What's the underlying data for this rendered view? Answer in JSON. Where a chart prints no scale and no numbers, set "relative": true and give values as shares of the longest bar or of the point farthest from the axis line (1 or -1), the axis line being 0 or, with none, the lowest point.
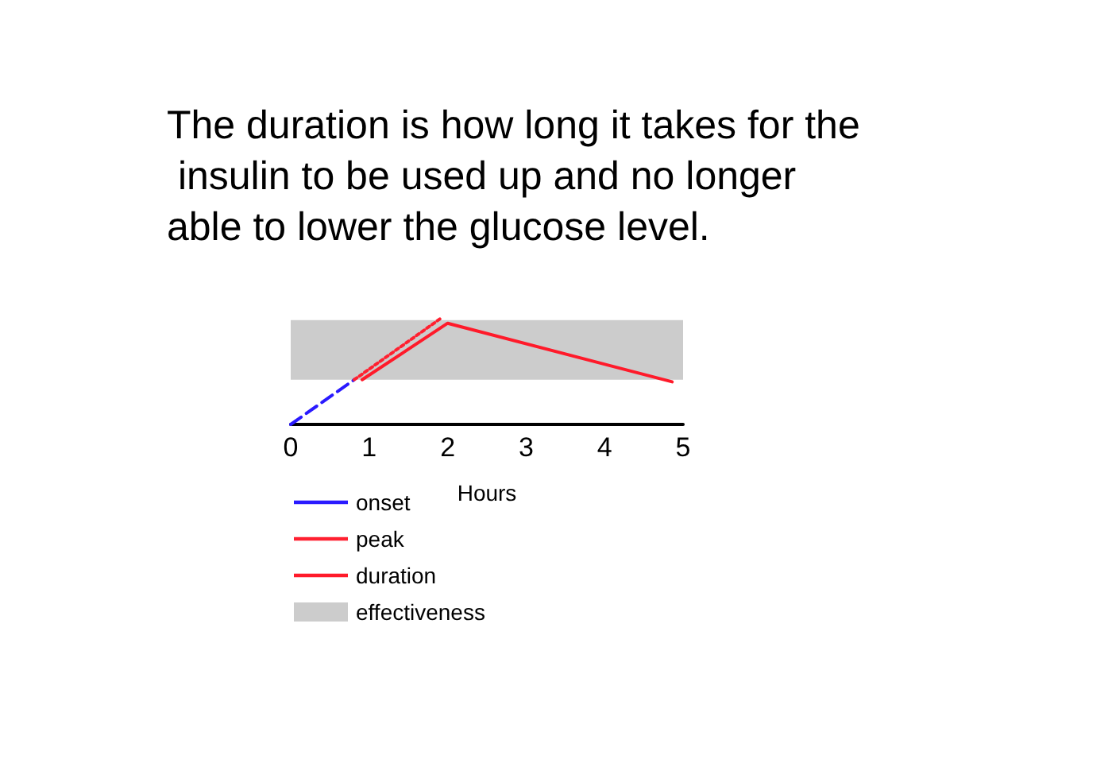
{
  "chart_data": {
    "type": "line",
    "title": "The duration is how long it takes for the insulin to be used up and no longer able to lower the glucose level.",
    "xlabel": "Hours",
    "relative": true,
    "xlim": [
      0,
      5
    ],
    "xticks": [
      0,
      1,
      2,
      3,
      4,
      5
    ],
    "grid": false,
    "legend": "bottom left",
    "marker": "none",
    "series": [
      {
        "name": "onset",
        "color": "#2a1aff",
        "line_style": "dashed",
        "x": [
          0,
          0.81
        ],
        "values": [
          0,
          0.42
        ]
      },
      {
        "name": "peak",
        "color": "#ff2030",
        "line_style": "dotted",
        "x": [
          0.81,
          1.92
        ],
        "values": [
          0.42,
          1
        ]
      },
      {
        "name": "duration",
        "color": "#ff1a2a",
        "line_style": "solid",
        "x": [
          0.91,
          2,
          4.86
        ],
        "values": [
          0.42,
          0.95,
          0.4
        ]
      }
    ],
    "bands": [
      {
        "axis": "y",
        "from": 0.42,
        "to": 0.98,
        "label": "effectiveness",
        "color": "#cccccc"
      }
    ]
  }
}
